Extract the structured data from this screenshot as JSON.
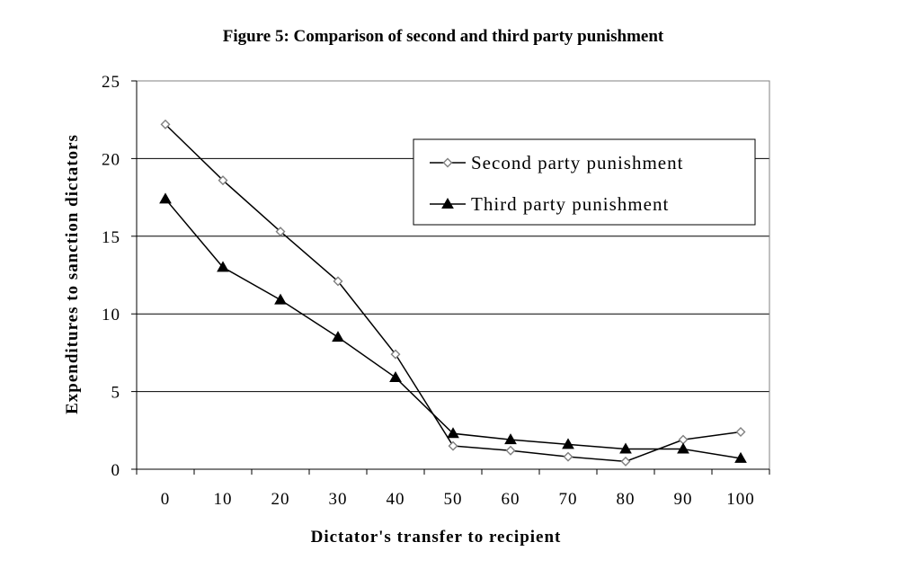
{
  "chart_data": {
    "type": "line",
    "title": "Figure 5: Comparison of second and third party punishment",
    "xlabel": "Dictator's transfer to recipient",
    "ylabel": "Expenditures to sanction dictators",
    "x": [
      0,
      10,
      20,
      30,
      40,
      50,
      60,
      70,
      80,
      90,
      100
    ],
    "ylim": [
      0,
      25
    ],
    "yticks": [
      0,
      5,
      10,
      15,
      20,
      25
    ],
    "grid": "horizontal",
    "legend_position": "top-right",
    "series": [
      {
        "name": "Second party punishment",
        "marker": "open-diamond",
        "color": "#000000",
        "values": [
          22.2,
          18.6,
          15.3,
          12.1,
          7.4,
          1.5,
          1.2,
          0.8,
          0.5,
          1.9,
          2.4
        ]
      },
      {
        "name": "Third party punishment",
        "marker": "filled-triangle",
        "color": "#000000",
        "values": [
          17.4,
          13.0,
          10.9,
          8.5,
          5.9,
          2.3,
          1.9,
          1.6,
          1.3,
          1.3,
          0.7
        ]
      }
    ]
  }
}
